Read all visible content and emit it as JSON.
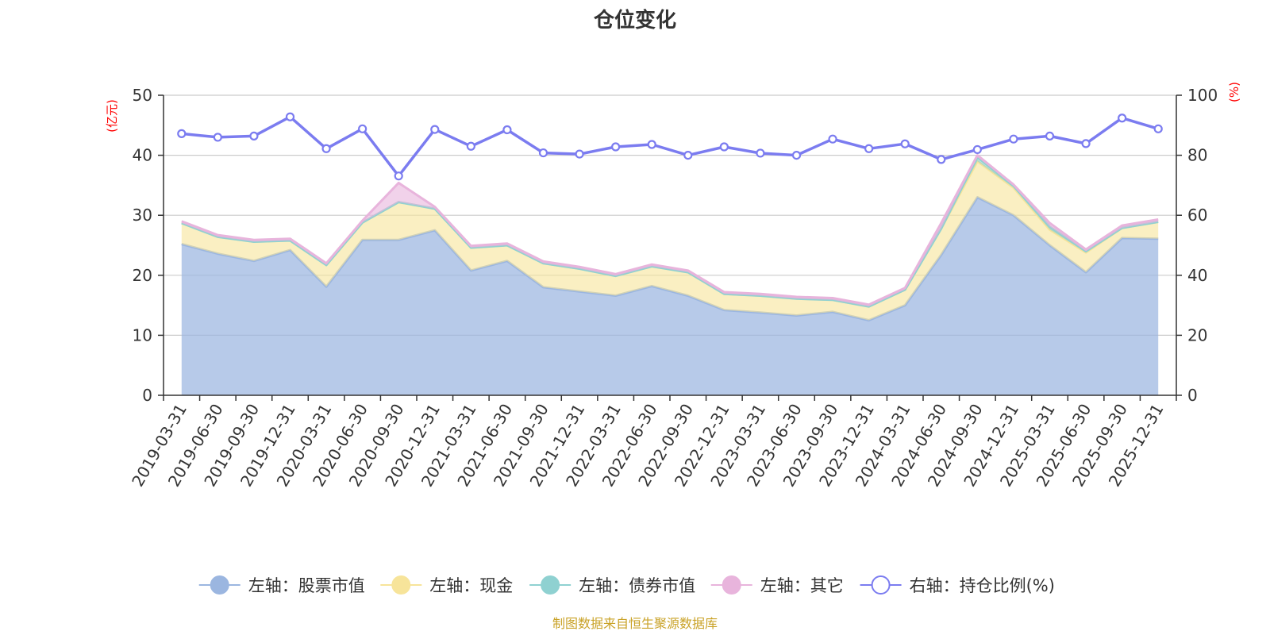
{
  "chart_data": {
    "type": "area",
    "title": "仓位变化",
    "left_axis_unit": "(亿元)",
    "right_axis_unit": "(%)",
    "ylim_left": [
      0,
      50
    ],
    "ylim_right": [
      0,
      100
    ],
    "left_ticks": [
      "0",
      "10",
      "20",
      "30",
      "40",
      "50"
    ],
    "right_ticks": [
      "0",
      "20",
      "40",
      "60",
      "80",
      "100"
    ],
    "categories": [
      "2019-03-31",
      "2019-06-30",
      "2019-09-30",
      "2019-12-31",
      "2020-03-31",
      "2020-06-30",
      "2020-09-30",
      "2020-12-31",
      "2021-03-31",
      "2021-06-30",
      "2021-09-30",
      "2021-12-31",
      "2022-03-31",
      "2022-06-30",
      "2022-09-30",
      "2022-12-31",
      "2023-03-31",
      "2023-06-30",
      "2023-09-30",
      "2023-12-31",
      "2024-03-31",
      "2024-06-30",
      "2024-09-30",
      "2024-12-31",
      "2025-03-31",
      "2025-06-30",
      "2025-09-30",
      "2025-12-31"
    ],
    "series": [
      {
        "name": "左轴：股票市值",
        "axis": "left",
        "color": "#9bb6e0",
        "values": [
          25.2,
          23.6,
          22.4,
          24.2,
          18.1,
          25.9,
          25.9,
          27.5,
          20.8,
          22.4,
          18.0,
          17.3,
          16.6,
          18.2,
          16.6,
          14.2,
          13.8,
          13.3,
          13.9,
          12.5,
          15.0,
          23.4,
          33.0,
          30.0,
          25.0,
          20.5,
          26.2,
          26.1
        ]
      },
      {
        "name": "左轴：现金",
        "axis": "left",
        "color": "#f7e49a",
        "values": [
          3.5,
          2.8,
          3.2,
          1.6,
          3.6,
          2.9,
          6.3,
          3.6,
          3.8,
          2.6,
          4.0,
          3.8,
          3.3,
          3.3,
          3.9,
          2.7,
          2.8,
          2.8,
          2.0,
          2.3,
          2.6,
          4.4,
          6.0,
          4.6,
          2.6,
          3.3,
          1.7,
          2.8
        ]
      },
      {
        "name": "左轴：债券市值",
        "axis": "left",
        "color": "#8fd1d1",
        "values": [
          0,
          0,
          0,
          0,
          0,
          0,
          0,
          0,
          0,
          0,
          0,
          0,
          0,
          0,
          0,
          0,
          0,
          0,
          0,
          0,
          0,
          0,
          0.7,
          0.3,
          0.5,
          0.2,
          0,
          0
        ]
      },
      {
        "name": "左轴：其它",
        "axis": "left",
        "color": "#e8b4dc",
        "values": [
          0.3,
          0.3,
          0.3,
          0.3,
          0.3,
          0.3,
          3.2,
          0.3,
          0.3,
          0.3,
          0.3,
          0.3,
          0.3,
          0.3,
          0.3,
          0.3,
          0.3,
          0.3,
          0.3,
          0.3,
          0.3,
          0.9,
          0.3,
          0.2,
          0.6,
          0.3,
          0.4,
          0.4
        ]
      },
      {
        "name": "右轴：持仓比例(%)",
        "axis": "right",
        "color": "#7b7cf0",
        "values": [
          87.2,
          86.0,
          86.4,
          92.8,
          82.2,
          88.8,
          73.1,
          88.6,
          83.0,
          88.5,
          80.8,
          80.4,
          82.8,
          83.6,
          80.0,
          82.8,
          80.7,
          80.0,
          85.4,
          82.2,
          83.8,
          78.6,
          81.9,
          85.4,
          86.4,
          83.9,
          92.4,
          88.8
        ]
      }
    ],
    "source": "制图数据来自恒生聚源数据库"
  }
}
